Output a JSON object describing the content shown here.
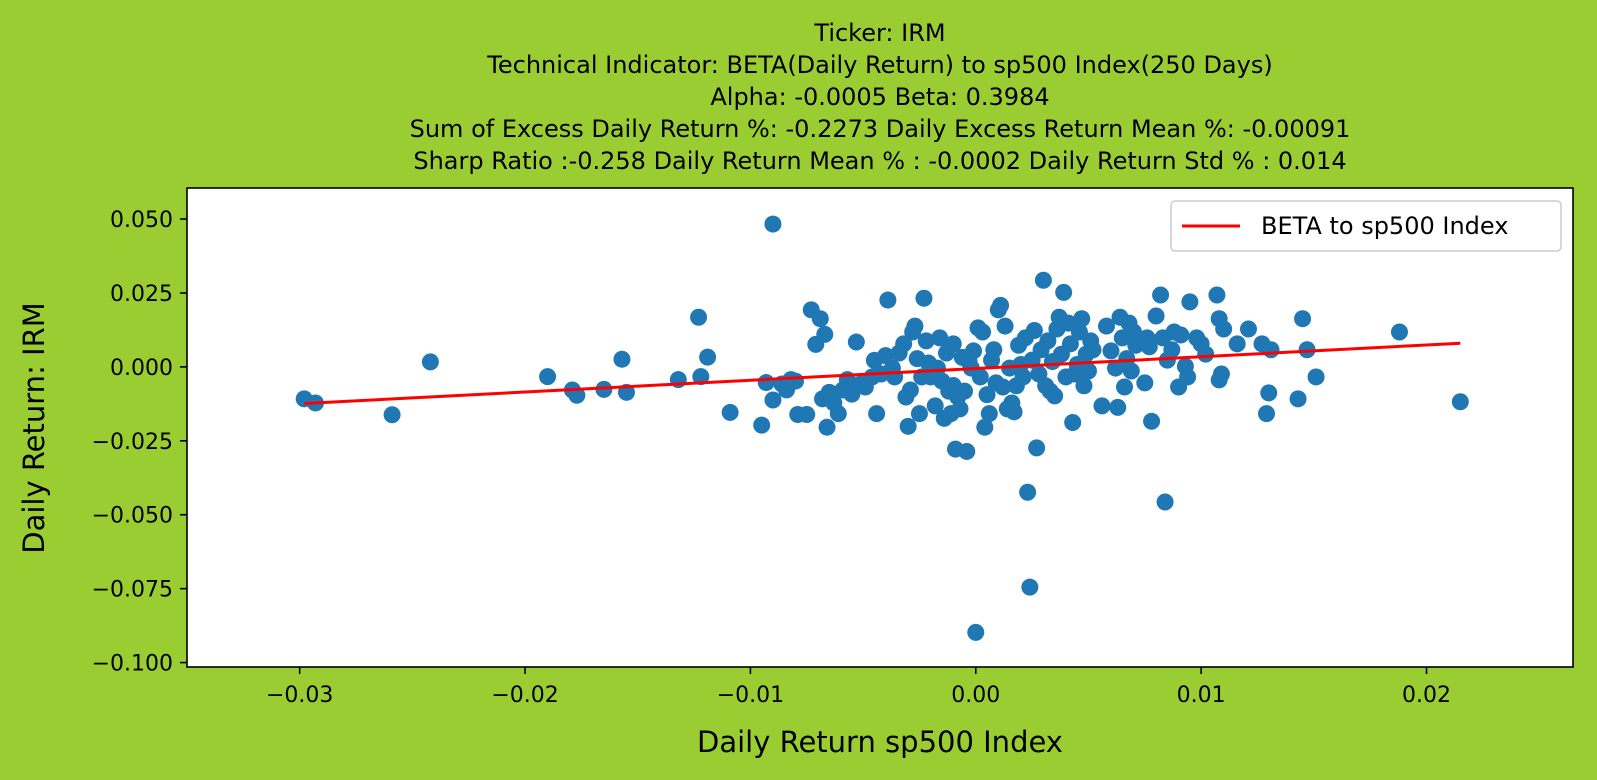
{
  "chart_data": {
    "type": "scatter",
    "title_lines": [
      "Ticker: IRM",
      "Technical Indicator: BETA(Daily Return) to sp500 Index(250 Days)",
      "Alpha: -0.0005   Beta: 0.3984",
      "Sum of Excess Daily Return %: -0.2273   Daily Excess Return Mean %: -0.00091",
      "Sharp Ratio :-0.258    Daily Return Mean % : -0.0002    Daily Return Std % : 0.014"
    ],
    "xlabel": "Daily Return sp500 Index",
    "ylabel": "Daily Return: IRM",
    "xlim": [
      -0.035,
      0.0265
    ],
    "ylim": [
      -0.1015,
      0.0605
    ],
    "x_ticks": [
      -0.03,
      -0.02,
      -0.01,
      0.0,
      0.01,
      0.02
    ],
    "x_tick_labels": [
      "−0.03",
      "−0.02",
      "−0.01",
      "0.00",
      "0.01",
      "0.02"
    ],
    "y_ticks": [
      0.05,
      0.025,
      0.0,
      -0.025,
      -0.05,
      -0.075,
      -0.1
    ],
    "y_tick_labels": [
      "0.050",
      "0.025",
      "0.000",
      "−0.025",
      "−0.050",
      "−0.075",
      "−0.100"
    ],
    "grid": false,
    "legend_position": "top-right",
    "colors": {
      "background": "#9acd32",
      "plot_area": "#ffffff",
      "points": "#1f77b4",
      "line": "#ff0000"
    },
    "series": [
      {
        "kind": "scatter",
        "points": [
          [
            -0.0298,
            -0.0108
          ],
          [
            -0.0293,
            -0.0122
          ],
          [
            -0.0259,
            -0.0162
          ],
          [
            -0.0242,
            0.0017
          ],
          [
            -0.019,
            -0.0033
          ],
          [
            -0.0179,
            -0.0078
          ],
          [
            -0.0177,
            -0.0096
          ],
          [
            -0.0165,
            -0.0076
          ],
          [
            -0.0157,
            0.0026
          ],
          [
            -0.0155,
            -0.0086
          ],
          [
            -0.0132,
            -0.0043
          ],
          [
            -0.0123,
            0.0168
          ],
          [
            -0.0122,
            -0.0033
          ],
          [
            -0.0119,
            0.0033
          ],
          [
            -0.0109,
            -0.0154
          ],
          [
            -0.0095,
            -0.0197
          ],
          [
            -0.0093,
            -0.0053
          ],
          [
            -0.009,
            0.0483
          ],
          [
            -0.009,
            -0.0112
          ],
          [
            -0.0086,
            -0.0058
          ],
          [
            -0.0084,
            -0.0078
          ],
          [
            -0.0082,
            -0.0043
          ],
          [
            -0.008,
            -0.0048
          ],
          [
            -0.0079,
            -0.0161
          ],
          [
            -0.0075,
            -0.0161
          ],
          [
            -0.0073,
            0.0193
          ],
          [
            -0.0071,
            0.0076
          ],
          [
            -0.0069,
            0.0163
          ],
          [
            -0.0068,
            -0.0108
          ],
          [
            -0.0067,
            0.011
          ],
          [
            -0.0066,
            -0.0204
          ],
          [
            -0.0065,
            -0.0086
          ],
          [
            -0.0063,
            -0.0122
          ],
          [
            -0.0061,
            -0.0158
          ],
          [
            -0.0059,
            -0.0078
          ],
          [
            -0.0057,
            -0.0043
          ],
          [
            -0.0055,
            -0.0092
          ],
          [
            -0.0053,
            0.0084
          ],
          [
            -0.0051,
            -0.0058
          ],
          [
            -0.0049,
            -0.0068
          ],
          [
            -0.0046,
            -0.0034
          ],
          [
            -0.0045,
            0.0022
          ],
          [
            -0.0044,
            -0.0158
          ],
          [
            -0.0042,
            -0.0024
          ],
          [
            -0.004,
            0.0038
          ],
          [
            -0.0039,
            0.0226
          ],
          [
            -0.0037,
            -0.0004
          ],
          [
            -0.0036,
            -0.0034
          ],
          [
            -0.0034,
            0.0047
          ],
          [
            -0.0032,
            0.0078
          ],
          [
            -0.0031,
            -0.0102
          ],
          [
            -0.003,
            -0.0201
          ],
          [
            -0.0029,
            -0.0078
          ],
          [
            -0.0028,
            0.0118
          ],
          [
            -0.0027,
            0.0138
          ],
          [
            -0.0026,
            0.0028
          ],
          [
            -0.0025,
            -0.0158
          ],
          [
            -0.0024,
            -0.0034
          ],
          [
            -0.0023,
            0.0232
          ],
          [
            -0.0022,
            0.0088
          ],
          [
            -0.0021,
            0.0013
          ],
          [
            -0.002,
            -0.0034
          ],
          [
            -0.0018,
            -0.0132
          ],
          [
            -0.0017,
            -0.0004
          ],
          [
            -0.0016,
            0.0098
          ],
          [
            -0.0015,
            -0.0048
          ],
          [
            -0.0014,
            -0.0174
          ],
          [
            -0.0013,
            0.0047
          ],
          [
            -0.0012,
            -0.0082
          ],
          [
            -0.0011,
            -0.0158
          ],
          [
            -0.001,
            -0.0063
          ],
          [
            -0.001,
            0.0078
          ],
          [
            -0.0009,
            -0.0278
          ],
          [
            -0.0008,
            -0.0102
          ],
          [
            -0.0007,
            -0.0142
          ],
          [
            -0.0006,
            0.0032
          ],
          [
            -0.0005,
            -0.0082
          ],
          [
            -0.0004,
            -0.0286
          ],
          [
            -0.0003,
            0.0018
          ],
          [
            -0.0002,
            -0.0004
          ],
          [
            -0.0001,
            0.0054
          ],
          [
            0.0,
            -0.0898
          ],
          [
            0.0001,
            0.0132
          ],
          [
            0.0002,
            -0.0034
          ],
          [
            0.0003,
            0.0118
          ],
          [
            0.0004,
            -0.0204
          ],
          [
            0.0005,
            -0.0094
          ],
          [
            0.0006,
            -0.0158
          ],
          [
            0.0007,
            0.0023
          ],
          [
            0.0008,
            0.0058
          ],
          [
            0.0009,
            -0.0054
          ],
          [
            0.001,
            0.0193
          ],
          [
            0.0011,
            0.0208
          ],
          [
            0.0012,
            -0.0068
          ],
          [
            0.0013,
            0.0138
          ],
          [
            0.0014,
            -0.0142
          ],
          [
            0.0015,
            -0.0004
          ],
          [
            0.0016,
            -0.0122
          ],
          [
            0.0017,
            -0.0152
          ],
          [
            0.0018,
            -0.0064
          ],
          [
            0.0019,
            0.0073
          ],
          [
            0.002,
            0.0008
          ],
          [
            0.0021,
            -0.0034
          ],
          [
            0.0022,
            0.0098
          ],
          [
            0.0023,
            -0.0424
          ],
          [
            0.0024,
            -0.0745
          ],
          [
            0.0025,
            0.0023
          ],
          [
            0.0026,
            0.0123
          ],
          [
            0.0027,
            -0.0274
          ],
          [
            0.0028,
            -0.0024
          ],
          [
            0.0029,
            0.0058
          ],
          [
            0.003,
            0.0293
          ],
          [
            0.0031,
            -0.0064
          ],
          [
            0.0032,
            0.0088
          ],
          [
            0.0033,
            -0.0082
          ],
          [
            0.0034,
            0.0018
          ],
          [
            0.0035,
            -0.0098
          ],
          [
            0.0036,
            0.0128
          ],
          [
            0.0037,
            0.0168
          ],
          [
            0.0038,
            0.0043
          ],
          [
            0.0039,
            0.0252
          ],
          [
            0.004,
            -0.0034
          ],
          [
            0.0041,
            0.0148
          ],
          [
            0.0042,
            0.0078
          ],
          [
            0.0043,
            -0.0188
          ],
          [
            0.0044,
            -0.0024
          ],
          [
            0.0045,
            0.0008
          ],
          [
            0.0046,
            0.0118
          ],
          [
            0.0047,
            0.0163
          ],
          [
            0.0048,
            -0.0064
          ],
          [
            0.0049,
            0.0043
          ],
          [
            0.005,
            -0.0014
          ],
          [
            0.0051,
            0.0088
          ],
          [
            0.0052,
            0.0058
          ],
          [
            0.0056,
            -0.0132
          ],
          [
            0.0058,
            0.0138
          ],
          [
            0.006,
            0.0054
          ],
          [
            0.0062,
            -0.0004
          ],
          [
            0.0063,
            -0.0137
          ],
          [
            0.0064,
            0.0168
          ],
          [
            0.0065,
            0.0098
          ],
          [
            0.0066,
            -0.0068
          ],
          [
            0.0067,
            0.0028
          ],
          [
            0.0068,
            0.0148
          ],
          [
            0.0069,
            -0.0014
          ],
          [
            0.007,
            0.0118
          ],
          [
            0.0071,
            0.0073
          ],
          [
            0.0073,
            0.0088
          ],
          [
            0.0075,
            -0.0054
          ],
          [
            0.0076,
            0.0098
          ],
          [
            0.0077,
            0.0068
          ],
          [
            0.0078,
            -0.0184
          ],
          [
            0.008,
            0.0172
          ],
          [
            0.0082,
            0.0243
          ],
          [
            0.0083,
            0.0098
          ],
          [
            0.0084,
            -0.0457
          ],
          [
            0.0085,
            0.0023
          ],
          [
            0.0087,
            0.0058
          ],
          [
            0.0088,
            0.0118
          ],
          [
            0.009,
            -0.0068
          ],
          [
            0.0091,
            0.0108
          ],
          [
            0.0093,
            0.0002
          ],
          [
            0.0094,
            -0.0034
          ],
          [
            0.0095,
            0.022
          ],
          [
            0.0098,
            0.0098
          ],
          [
            0.01,
            0.0078
          ],
          [
            0.0102,
            0.0043
          ],
          [
            0.0107,
            0.0243
          ],
          [
            0.0108,
            0.0163
          ],
          [
            0.0108,
            -0.0044
          ],
          [
            0.0109,
            -0.0024
          ],
          [
            0.011,
            0.0128
          ],
          [
            0.0116,
            0.0078
          ],
          [
            0.0121,
            0.0128
          ],
          [
            0.0127,
            0.0078
          ],
          [
            0.0129,
            -0.0158
          ],
          [
            0.013,
            -0.0088
          ],
          [
            0.0131,
            0.0058
          ],
          [
            0.0143,
            -0.0108
          ],
          [
            0.0145,
            0.0163
          ],
          [
            0.0147,
            0.0058
          ],
          [
            0.0151,
            -0.0034
          ],
          [
            0.0188,
            0.0118
          ],
          [
            0.0215,
            -0.0118
          ]
        ]
      },
      {
        "kind": "line",
        "name": "BETA to sp500 Index",
        "points": [
          [
            -0.0298,
            -0.0124
          ],
          [
            0.0215,
            0.008
          ]
        ]
      }
    ]
  }
}
